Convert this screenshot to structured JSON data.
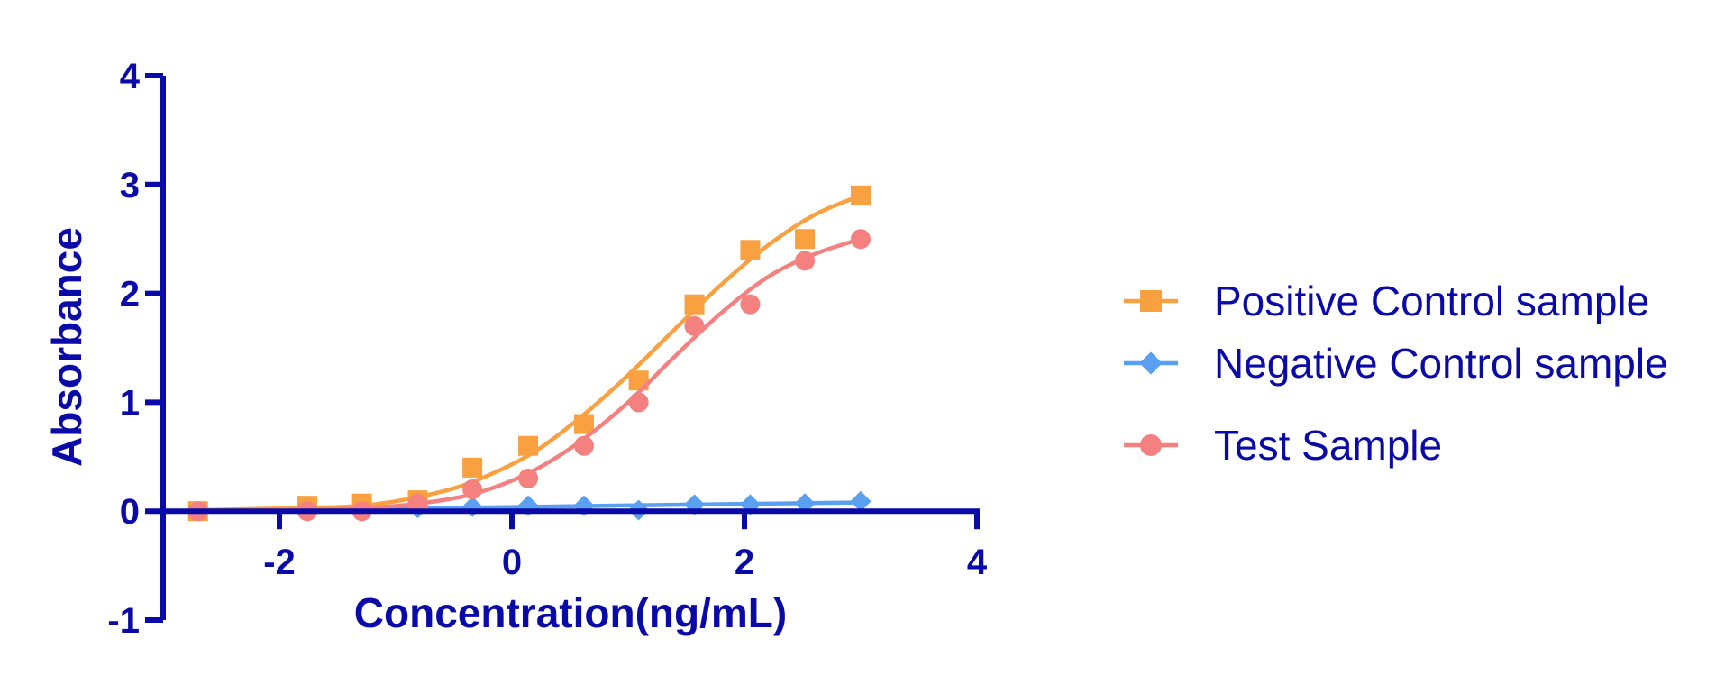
{
  "chart_data": {
    "type": "scatter",
    "title": "",
    "xlabel": "Concentration(ng/mL)",
    "ylabel": "Absorbance",
    "xlim": [
      -3,
      4
    ],
    "ylim": [
      -1,
      4
    ],
    "xticks": [
      -2,
      0,
      2,
      4
    ],
    "xtick_labels": [
      "-2",
      "0",
      "2",
      "4"
    ],
    "yticks": [
      -1,
      0,
      1,
      2,
      3,
      4
    ],
    "ytick_labels": [
      "-1",
      "0",
      "1",
      "2",
      "3",
      "4"
    ],
    "grid": false,
    "legend_position": "right",
    "axis_color": "#0a0aa8",
    "series": [
      {
        "name": "Positive Control sample",
        "color": "#f9a040",
        "marker": "square",
        "x": [
          -2.7,
          -1.76,
          -1.29,
          -0.81,
          -0.34,
          0.14,
          0.62,
          1.09,
          1.57,
          2.05,
          2.52,
          3.0
        ],
        "y": [
          0.0,
          0.05,
          0.07,
          0.1,
          0.4,
          0.6,
          0.8,
          1.2,
          1.9,
          2.4,
          2.5,
          2.9
        ],
        "fit": [
          [
            -2.7,
            0.01
          ],
          [
            -1.8,
            0.03
          ],
          [
            -1.2,
            0.06
          ],
          [
            -0.6,
            0.18
          ],
          [
            -0.2,
            0.33
          ],
          [
            0.2,
            0.55
          ],
          [
            0.6,
            0.87
          ],
          [
            1.0,
            1.25
          ],
          [
            1.4,
            1.67
          ],
          [
            1.8,
            2.08
          ],
          [
            2.2,
            2.44
          ],
          [
            2.6,
            2.72
          ],
          [
            3.0,
            2.9
          ]
        ]
      },
      {
        "name": "Negative Control sample",
        "color": "#5aa0f0",
        "marker": "diamond",
        "x": [
          -2.7,
          -1.76,
          -1.29,
          -0.81,
          -0.34,
          0.14,
          0.62,
          1.09,
          1.57,
          2.05,
          2.52,
          3.0
        ],
        "y": [
          0.0,
          0.0,
          0.0,
          0.03,
          0.04,
          0.05,
          0.05,
          0.01,
          0.06,
          0.06,
          0.07,
          0.09
        ],
        "fit": [
          [
            -2.7,
            0.0
          ],
          [
            -1.5,
            0.01
          ],
          [
            -0.5,
            0.03
          ],
          [
            0.5,
            0.045
          ],
          [
            1.5,
            0.06
          ],
          [
            3.0,
            0.08
          ]
        ]
      },
      {
        "name": "Test Sample",
        "color": "#f58080",
        "marker": "circle",
        "x": [
          -2.7,
          -1.76,
          -1.29,
          -0.81,
          -0.34,
          0.14,
          0.62,
          1.09,
          1.57,
          2.05,
          2.52,
          3.0
        ],
        "y": [
          0.0,
          0.0,
          0.0,
          0.07,
          0.2,
          0.3,
          0.6,
          1.0,
          1.7,
          1.9,
          2.3,
          2.5
        ],
        "fit": [
          [
            -2.7,
            0.0
          ],
          [
            -1.8,
            0.01
          ],
          [
            -1.2,
            0.03
          ],
          [
            -0.6,
            0.1
          ],
          [
            -0.2,
            0.2
          ],
          [
            0.2,
            0.38
          ],
          [
            0.6,
            0.65
          ],
          [
            1.0,
            1.0
          ],
          [
            1.4,
            1.42
          ],
          [
            1.8,
            1.82
          ],
          [
            2.2,
            2.15
          ],
          [
            2.6,
            2.36
          ],
          [
            3.0,
            2.5
          ]
        ]
      }
    ]
  }
}
